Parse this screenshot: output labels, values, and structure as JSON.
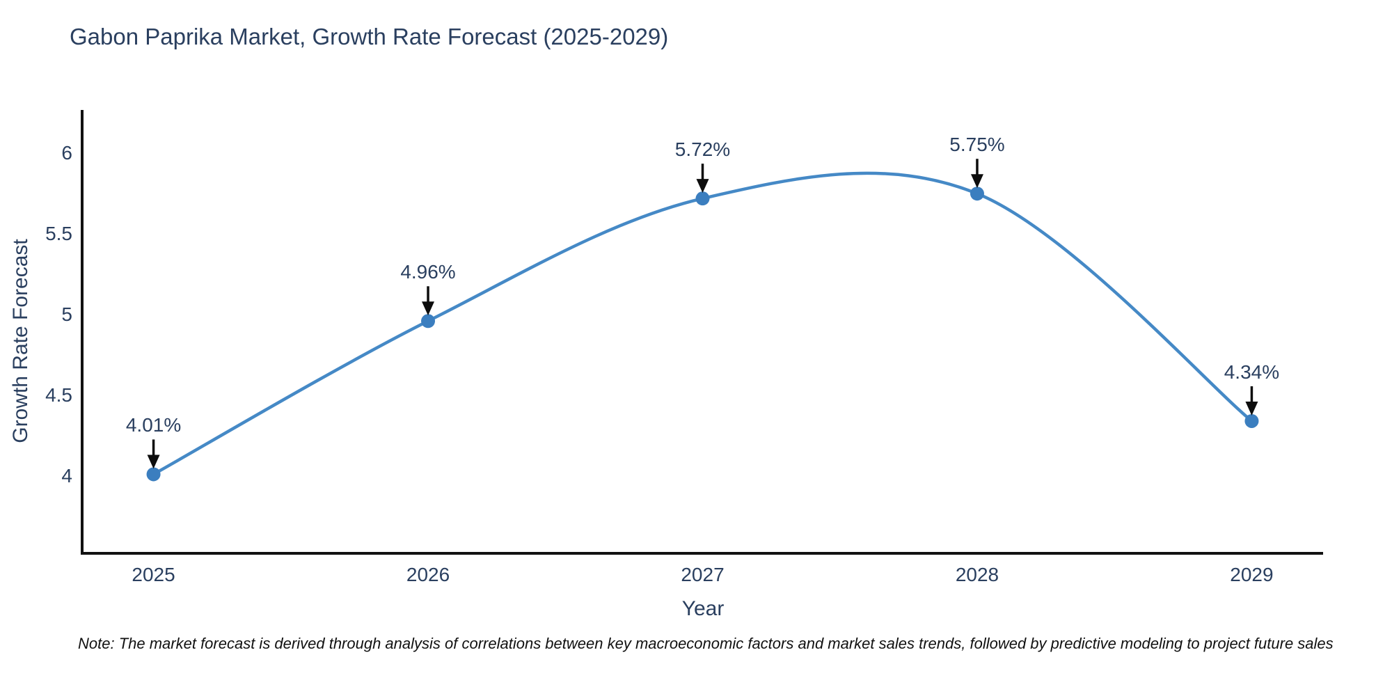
{
  "note": "Note: The market forecast is derived through analysis of correlations between key macroeconomic factors and market sales trends, followed by predictive modeling to project future sales",
  "chart_data": {
    "type": "line",
    "title": "Gabon Paprika Market, Growth Rate Forecast (2025-2029)",
    "xlabel": "Year",
    "ylabel": "Growth Rate Forecast",
    "x": [
      2025,
      2026,
      2027,
      2028,
      2029
    ],
    "series": [
      {
        "name": "Growth Rate Forecast",
        "values": [
          4.01,
          4.96,
          5.72,
          5.75,
          4.34
        ]
      }
    ],
    "point_labels": [
      "4.01%",
      "4.96%",
      "5.72%",
      "5.75%",
      "4.34%"
    ],
    "xtick_labels": [
      "2025",
      "2026",
      "2027",
      "2028",
      "2029"
    ],
    "ytick_labels": [
      "4",
      "4.5",
      "5",
      "5.5",
      "6"
    ],
    "ytick_values": [
      4,
      4.5,
      5,
      5.5,
      6
    ],
    "xlim": [
      2024.74,
      2029.26
    ],
    "ylim": [
      3.52,
      6.26
    ],
    "line_shape": "spline",
    "grid": false,
    "legend_position": "none",
    "colors": {
      "line": "#4589c6",
      "marker": "#3b7ebf",
      "axis_line": "#111111",
      "text": "#2a3f5f",
      "arrow": "#0d0d0d",
      "note_text": "#111111"
    }
  }
}
